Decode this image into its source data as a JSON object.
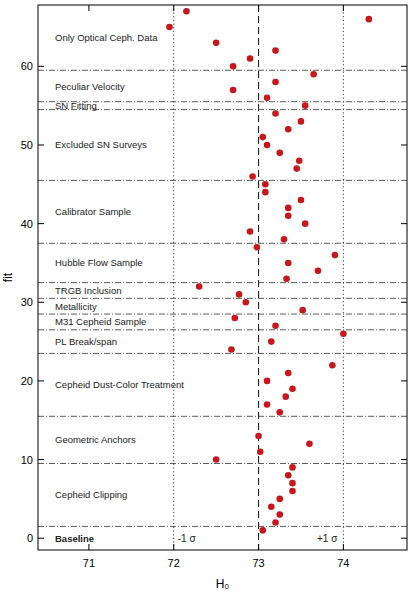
{
  "chart_data": {
    "type": "scatter",
    "x_label": "H₀",
    "y_label": "fit",
    "x": [
      73.05,
      73.2,
      73.25,
      73.15,
      73.25,
      73.4,
      73.4,
      73.35,
      73.4,
      72.5,
      73.02,
      73.6,
      73.0,
      73.25,
      73.1,
      73.32,
      73.4,
      73.1,
      73.35,
      73.87,
      72.68,
      73.15,
      74.0,
      73.2,
      72.72,
      73.52,
      72.85,
      72.77,
      72.3,
      73.33,
      73.7,
      73.35,
      73.9,
      72.98,
      73.3,
      72.9,
      73.55,
      73.35,
      73.35,
      73.5,
      73.08,
      73.08,
      72.93,
      73.45,
      73.48,
      73.25,
      73.1,
      73.05,
      73.35,
      73.5,
      73.2,
      73.55,
      73.1,
      72.7,
      73.2,
      73.65,
      72.7,
      72.9,
      73.2,
      72.5,
      71.95,
      74.3,
      72.15
    ],
    "series": [
      {
        "color": "#c8161d",
        "marker": "circle",
        "values": [
          1,
          2,
          3,
          4,
          5,
          6,
          7,
          8,
          9,
          10,
          11,
          12,
          13,
          16,
          17,
          18,
          19,
          20,
          21,
          22,
          24,
          25,
          26,
          27,
          28,
          29,
          30,
          31,
          32,
          33,
          34,
          35,
          36,
          37,
          38,
          39,
          40,
          41,
          42,
          43,
          44,
          45,
          46,
          47,
          48,
          49,
          50,
          51,
          52,
          53,
          54,
          55,
          56,
          57,
          58,
          59,
          60,
          61,
          62,
          63,
          65,
          66,
          67
        ]
      }
    ],
    "xlim": [
      70.4,
      74.75
    ],
    "ylim": [
      -1.5,
      67.8
    ],
    "xticks": [
      71,
      72,
      73,
      74
    ],
    "yticks": [
      0,
      10,
      20,
      30,
      40,
      50,
      60
    ],
    "reference_lines": [
      {
        "value": 72,
        "label": "-1 σ",
        "line_style": "dotted"
      },
      {
        "value": 73,
        "line_style": "dashed"
      },
      {
        "value": 74,
        "label": "+1 σ",
        "line_style": "dotted"
      }
    ],
    "groups": [
      {
        "label": "Baseline",
        "range": [
          -1.5,
          1.5
        ]
      },
      {
        "label": "Cepheid Clipping",
        "range": [
          1.5,
          9.5
        ]
      },
      {
        "label": "Geometric Anchors",
        "range": [
          9.5,
          15.5
        ]
      },
      {
        "label": "Cepheid Dust-Color Treatment",
        "range": [
          15.5,
          23.5
        ]
      },
      {
        "label": "PL Break/span",
        "range": [
          23.5,
          26.5
        ]
      },
      {
        "label": "M31 Cepheid Sample",
        "range": [
          26.5,
          28.5
        ]
      },
      {
        "label": "Metallicity",
        "range": [
          28.5,
          30.5
        ]
      },
      {
        "label": "TRGB Inclusion",
        "range": [
          30.5,
          32.5
        ]
      },
      {
        "label": "Hubble Flow Sample",
        "range": [
          32.5,
          37.5
        ]
      },
      {
        "label": "Calibrator Sample",
        "range": [
          37.5,
          45.5
        ]
      },
      {
        "label": "Excluded SN Surveys",
        "range": [
          45.5,
          54.5
        ]
      },
      {
        "label": "SN Fitting",
        "range": [
          54.5,
          55.5
        ]
      },
      {
        "label": "Peculiar Velocity",
        "range": [
          55.5,
          59.5
        ]
      },
      {
        "label": "Only Optical Ceph. Data",
        "range": [
          59.5,
          67.8
        ]
      }
    ]
  }
}
